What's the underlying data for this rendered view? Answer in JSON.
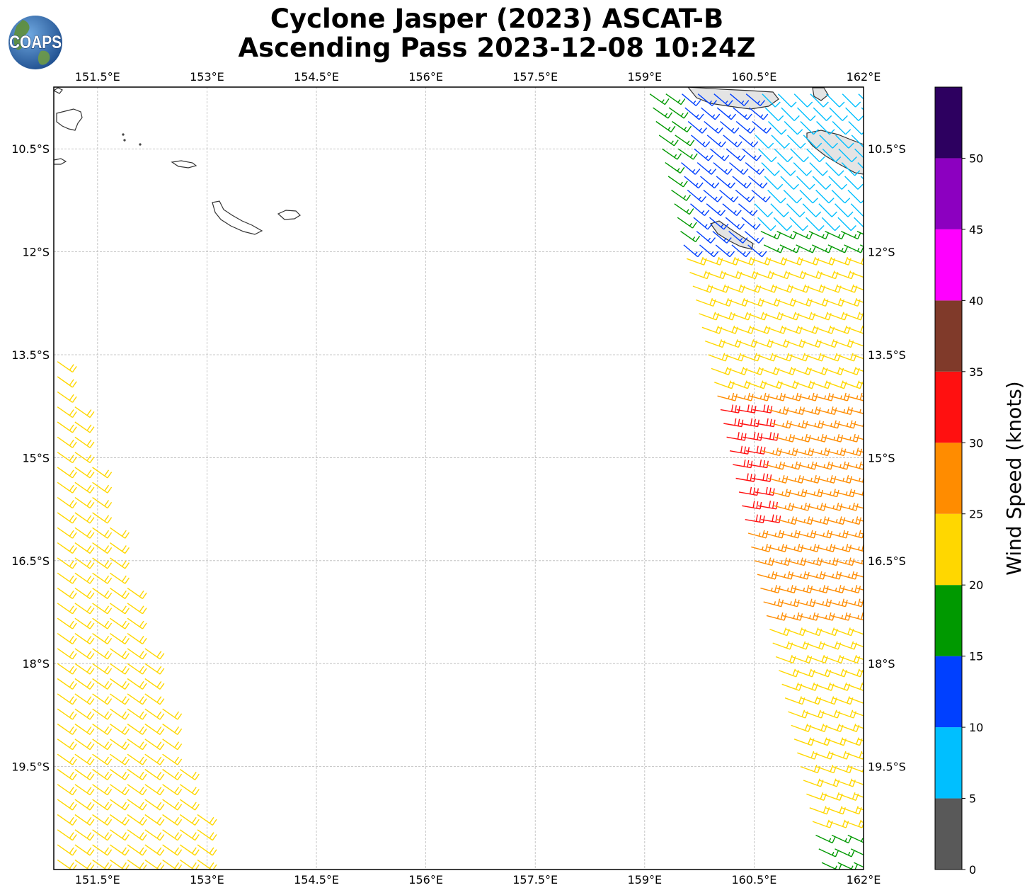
{
  "title": {
    "line1": "Cyclone Jasper (2023) ASCAT-B",
    "line2": "Ascending Pass 2023-12-08 10:24Z"
  },
  "logo": {
    "text": "COAPS",
    "icon": "globe-logo-icon",
    "colors": {
      "ocean": "#1f5fa8",
      "land": "#5f8f3a"
    }
  },
  "chart_data": {
    "type": "scatter",
    "projection": "plate-carree",
    "xlim": [
      150.9,
      162.0
    ],
    "ylim": [
      -21.0,
      -9.6
    ],
    "x_ticks": [
      151.5,
      153.0,
      154.5,
      156.0,
      157.5,
      159.0,
      160.5,
      162.0
    ],
    "x_tick_labels": [
      "151.5°E",
      "153°E",
      "154.5°E",
      "156°E",
      "157.5°E",
      "159°E",
      "160.5°E",
      "162°E"
    ],
    "y_ticks": [
      -10.5,
      -12.0,
      -13.5,
      -15.0,
      -16.5,
      -18.0,
      -19.5
    ],
    "y_tick_labels": [
      "10.5°S",
      "12°S",
      "13.5°S",
      "15°S",
      "16.5°S",
      "18°S",
      "19.5°S"
    ],
    "grid": true,
    "marks": "wind-barbs",
    "colorbar": {
      "label": "Wind Speed (knots)",
      "boundaries": [
        0,
        5,
        10,
        15,
        20,
        25,
        30,
        35,
        40,
        45,
        50,
        55
      ],
      "tick_labels": [
        "0",
        "5",
        "10",
        "15",
        "20",
        "25",
        "30",
        "35",
        "40",
        "45",
        "50"
      ],
      "colors": [
        "#595959",
        "#00bfff",
        "#0040ff",
        "#009900",
        "#ffd700",
        "#ff8c00",
        "#ff1010",
        "#803a2a",
        "#ff00ff",
        "#8c00c0",
        "#2d0060"
      ]
    },
    "swaths": [
      {
        "name": "swath-west",
        "bounds": {
          "lat_top": -13.5,
          "lat_bottom": -21.0,
          "lon_outer": 150.9,
          "lon_inner_top": 151.0,
          "lon_inner_bottom": 153.1
        },
        "wind": {
          "speed_kt": 22,
          "dir_from_deg": 125
        }
      },
      {
        "name": "swath-east",
        "bounds": {
          "lat_top": -9.6,
          "lat_bottom": -21.0,
          "lon_inner_top": 159.0,
          "lon_inner_bottom": 161.4,
          "lon_outer": 162.0
        },
        "wind_field": [
          {
            "lat_min": -9.6,
            "lat_max": -11.6,
            "lon_min": 160.5,
            "speed_kt": 8,
            "dir_from_deg": 135
          },
          {
            "lat_min": -9.6,
            "lat_max": -12.0,
            "lon_min": 159.5,
            "lon_max": 160.5,
            "speed_kt": 13,
            "dir_from_deg": 130
          },
          {
            "lat_min": -9.6,
            "lat_max": -13.0,
            "lon_min": 159.0,
            "lon_max": 159.5,
            "speed_kt": 17,
            "dir_from_deg": 125
          },
          {
            "lat_min": -11.6,
            "lat_max": -13.3,
            "lon_min": 160.5,
            "speed_kt": 17,
            "dir_from_deg": 115
          },
          {
            "lat_min": -12.0,
            "lat_max": -14.0,
            "lon_min": 159.0,
            "speed_kt": 22,
            "dir_from_deg": 110
          },
          {
            "lat_min": -14.0,
            "lat_max": -17.3,
            "lon_min": 159.8,
            "speed_kt": 27,
            "dir_from_deg": 105
          },
          {
            "lat_min": -14.2,
            "lat_max": -15.9,
            "lon_min": 159.9,
            "lon_max": 160.6,
            "speed_kt": 32,
            "dir_from_deg": 100
          },
          {
            "lat_min": -17.3,
            "lat_max": -20.3,
            "lon_min": 160.7,
            "speed_kt": 22,
            "dir_from_deg": 110
          },
          {
            "lat_min": -20.3,
            "lat_max": -21.0,
            "lon_min": 161.0,
            "speed_kt": 17,
            "dir_from_deg": 115
          }
        ]
      }
    ]
  }
}
